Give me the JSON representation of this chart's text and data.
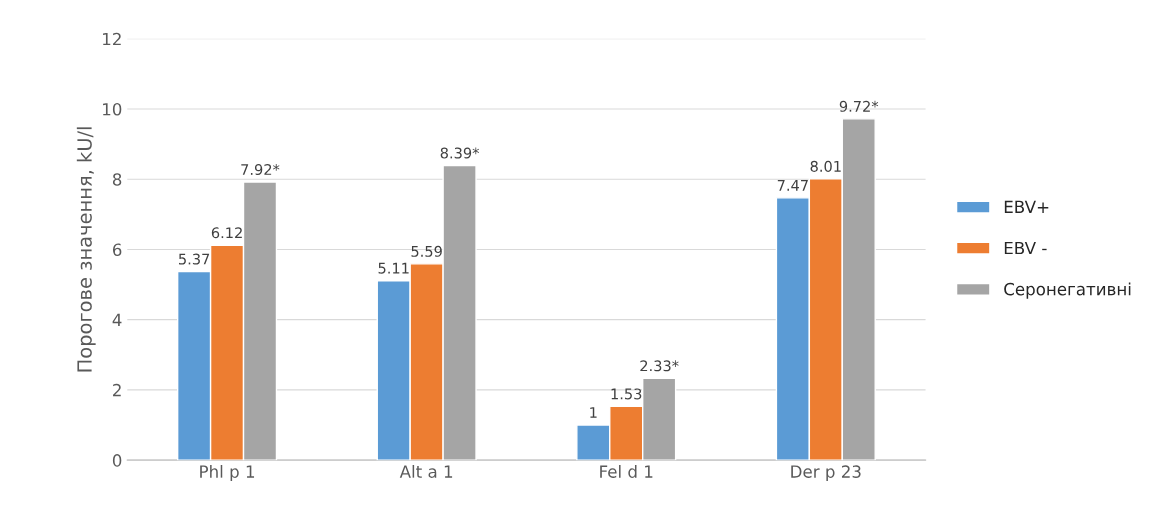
{
  "chart_data": {
    "type": "bar",
    "ylabel": "Порогове значення, kU/l",
    "categories": [
      "Phl p 1",
      "Alt a 1",
      "Fel d 1",
      "Der p 23"
    ],
    "series": [
      {
        "name": "EBV+",
        "color": "#5b9bd5",
        "values": [
          5.37,
          5.11,
          1,
          7.47
        ],
        "value_labels": [
          "5.37",
          "5.11",
          "1",
          "7.47"
        ]
      },
      {
        "name": "EBV -",
        "color": "#ed7d31",
        "values": [
          6.12,
          5.59,
          1.53,
          8.01
        ],
        "value_labels": [
          "6.12",
          "5.59",
          "1.53",
          "8.01"
        ]
      },
      {
        "name": "Серонегативні",
        "color": "#a5a5a5",
        "values": [
          7.92,
          8.39,
          2.33,
          9.72
        ],
        "value_labels": [
          "7.92*",
          "8.39*",
          "2.33*",
          "9.72*"
        ]
      }
    ],
    "ylim": [
      0,
      12
    ],
    "yticks": [
      0,
      2,
      4,
      6,
      8,
      10,
      12
    ],
    "grid": "y",
    "legend": "right"
  }
}
